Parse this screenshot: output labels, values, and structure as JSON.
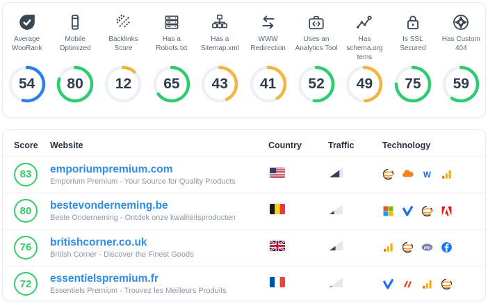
{
  "metrics": [
    {
      "icon": "woorank-check",
      "label": "Average WooRank",
      "value": 54,
      "color": "#2f80ed"
    },
    {
      "icon": "mobile",
      "label": "Mobile Optimized",
      "value": 80,
      "color": "#2ecc71"
    },
    {
      "icon": "backlinks-hatch",
      "label": "Backlinks Score",
      "value": 12,
      "color": "#f6b33f"
    },
    {
      "icon": "robots-server",
      "label": "Has a Robots.txt",
      "value": 65,
      "color": "#2ecc71"
    },
    {
      "icon": "sitemap",
      "label": "Has a Sitemap.xml",
      "value": 43,
      "color": "#f6b33f"
    },
    {
      "icon": "www-redirect",
      "label": "WWW Redirection",
      "value": 41,
      "color": "#f6b33f"
    },
    {
      "icon": "analytics-toolbox",
      "label": "Uses an Analytics Tool",
      "value": 52,
      "color": "#2ecc71"
    },
    {
      "icon": "schema-chart",
      "label": "Has schema.org tems",
      "value": 49,
      "color": "#f6b33f"
    },
    {
      "icon": "ssl-lock",
      "label": "Is SSL Secured",
      "value": 75,
      "color": "#2ecc71"
    },
    {
      "icon": "custom-404",
      "label": "Has Custom 404",
      "value": 59,
      "color": "#2ecc71"
    }
  ],
  "table": {
    "headers": {
      "score": "Score",
      "website": "Website",
      "country": "Country",
      "traffic": "Traffic",
      "technology": "Technology"
    },
    "rows": [
      {
        "score": 83,
        "domain": "emporiumpremium.com",
        "description": "Emporium Premium - Your Source for Quality Products",
        "country": "us",
        "traffic": 0.75,
        "tech": [
          "globe-orange",
          "cloudflare",
          "webflow",
          "google-analytics"
        ]
      },
      {
        "score": 80,
        "domain": "bestevonderneming.be",
        "description": "Beste Onderneming - Ontdek onze kwaliteitsproducten",
        "country": "be",
        "traffic": 0.35,
        "tech": [
          "microsoft",
          "blue-check",
          "globe-orange",
          "adobe"
        ]
      },
      {
        "score": 76,
        "domain": "britishcorner.co.uk",
        "description": "British Corner - Discover the Finest Goods",
        "country": "gb",
        "traffic": 0.45,
        "tech": [
          "google-analytics",
          "globe-orange",
          "php",
          "facebook"
        ]
      },
      {
        "score": 72,
        "domain": "essentielspremium.fr",
        "description": "Essentiels Premium - Trouvez les Meilleurs Produits",
        "country": "fr",
        "traffic": 0.15,
        "tech": [
          "blue-check",
          "red-slashes",
          "google-analytics",
          "globe-orange"
        ]
      }
    ]
  },
  "colors": {
    "score_ring": "#33cb67",
    "link_blue": "#2e8ceb",
    "gauge_blue": "#2f80ed",
    "gauge_green": "#2ecc71",
    "gauge_orange": "#f6b33f"
  }
}
